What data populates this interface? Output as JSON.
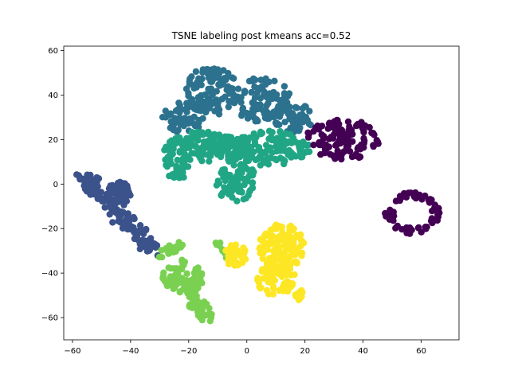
{
  "chart_data": {
    "type": "scatter",
    "title": "TSNE labeling post kmeans acc=0.52",
    "xlabel": "",
    "ylabel": "",
    "xlim": [
      -63,
      73
    ],
    "ylim": [
      -70,
      62
    ],
    "xticks": [
      -60,
      -40,
      -20,
      0,
      20,
      40,
      60
    ],
    "yticks": [
      -60,
      -40,
      -20,
      0,
      20,
      40,
      60
    ],
    "xtick_labels": [
      "−60",
      "−40",
      "−20",
      "0",
      "20",
      "40",
      "60"
    ],
    "ytick_labels": [
      "−60",
      "−40",
      "−20",
      "0",
      "20",
      "40",
      "60"
    ],
    "grid": false,
    "colormap": "viridis",
    "clusters": [
      {
        "label": 0,
        "color": "#440154",
        "region": "upper-right and far-right ring",
        "approx_extent": {
          "x": [
            20,
            47
          ],
          "y": [
            8,
            32
          ]
        }
      },
      {
        "label": 0,
        "color": "#440154",
        "region": "far-right ring",
        "approx_extent": {
          "x": [
            47,
            67
          ],
          "y": [
            -23,
            -4
          ]
        }
      },
      {
        "label": 1,
        "color": "#3b528b",
        "region": "left diagonal band",
        "approx_extent": {
          "x": [
            -57,
            -28
          ],
          "y": [
            -33,
            4
          ]
        }
      },
      {
        "label": 2,
        "color": "#2c728e",
        "region": "upper middle",
        "approx_extent": {
          "x": [
            -30,
            23
          ],
          "y": [
            20,
            55
          ]
        }
      },
      {
        "label": 3,
        "color": "#21a685",
        "region": "center",
        "approx_extent": {
          "x": [
            -30,
            22
          ],
          "y": [
            -10,
            25
          ]
        }
      },
      {
        "label": 4,
        "color": "#7ad151",
        "region": "lower left-center",
        "approx_extent": {
          "x": [
            -35,
            -4
          ],
          "y": [
            -63,
            -22
          ]
        }
      },
      {
        "label": 5,
        "color": "#fde725",
        "region": "lower right-center",
        "approx_extent": {
          "x": [
            -10,
            24
          ],
          "y": [
            -53,
            -17
          ]
        }
      }
    ]
  }
}
